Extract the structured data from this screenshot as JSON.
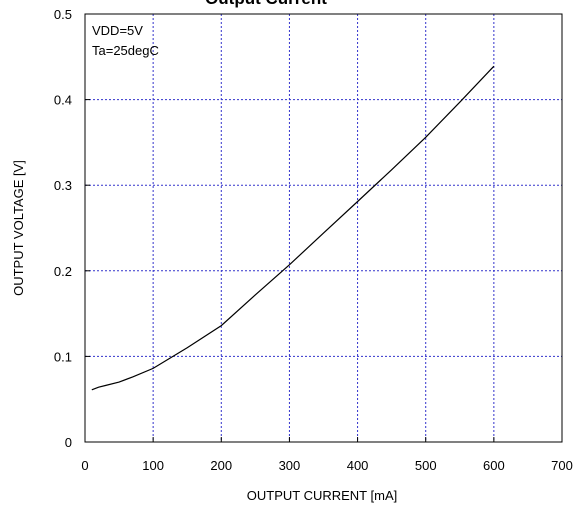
{
  "chart_data": {
    "type": "line",
    "title": "Output Current",
    "xlabel": "OUTPUT CURRENT [mA]",
    "ylabel": "OUTPUT  VOLTAGE [V]",
    "xlim": [
      0,
      700
    ],
    "ylim": [
      0,
      0.5
    ],
    "x_ticks": [
      "0",
      "100",
      "200",
      "300",
      "400",
      "500",
      "600",
      "700"
    ],
    "y_ticks": [
      "0",
      "0.1",
      "0.2",
      "0.3",
      "0.4",
      "0.5"
    ],
    "annotations": [
      "VDD=5V",
      "Ta=25degC"
    ],
    "grid": true,
    "series": [
      {
        "x": [
          10,
          20,
          30,
          50,
          70,
          100,
          150,
          200,
          250,
          300,
          350,
          400,
          450,
          500,
          550,
          600
        ],
        "y": [
          0.061,
          0.064,
          0.066,
          0.07,
          0.076,
          0.086,
          0.11,
          0.136,
          0.172,
          0.207,
          0.244,
          0.281,
          0.318,
          0.356,
          0.397,
          0.439
        ]
      }
    ]
  },
  "colors": {
    "line": "#000000",
    "grid": "#3333cc",
    "frame": "#000000"
  }
}
